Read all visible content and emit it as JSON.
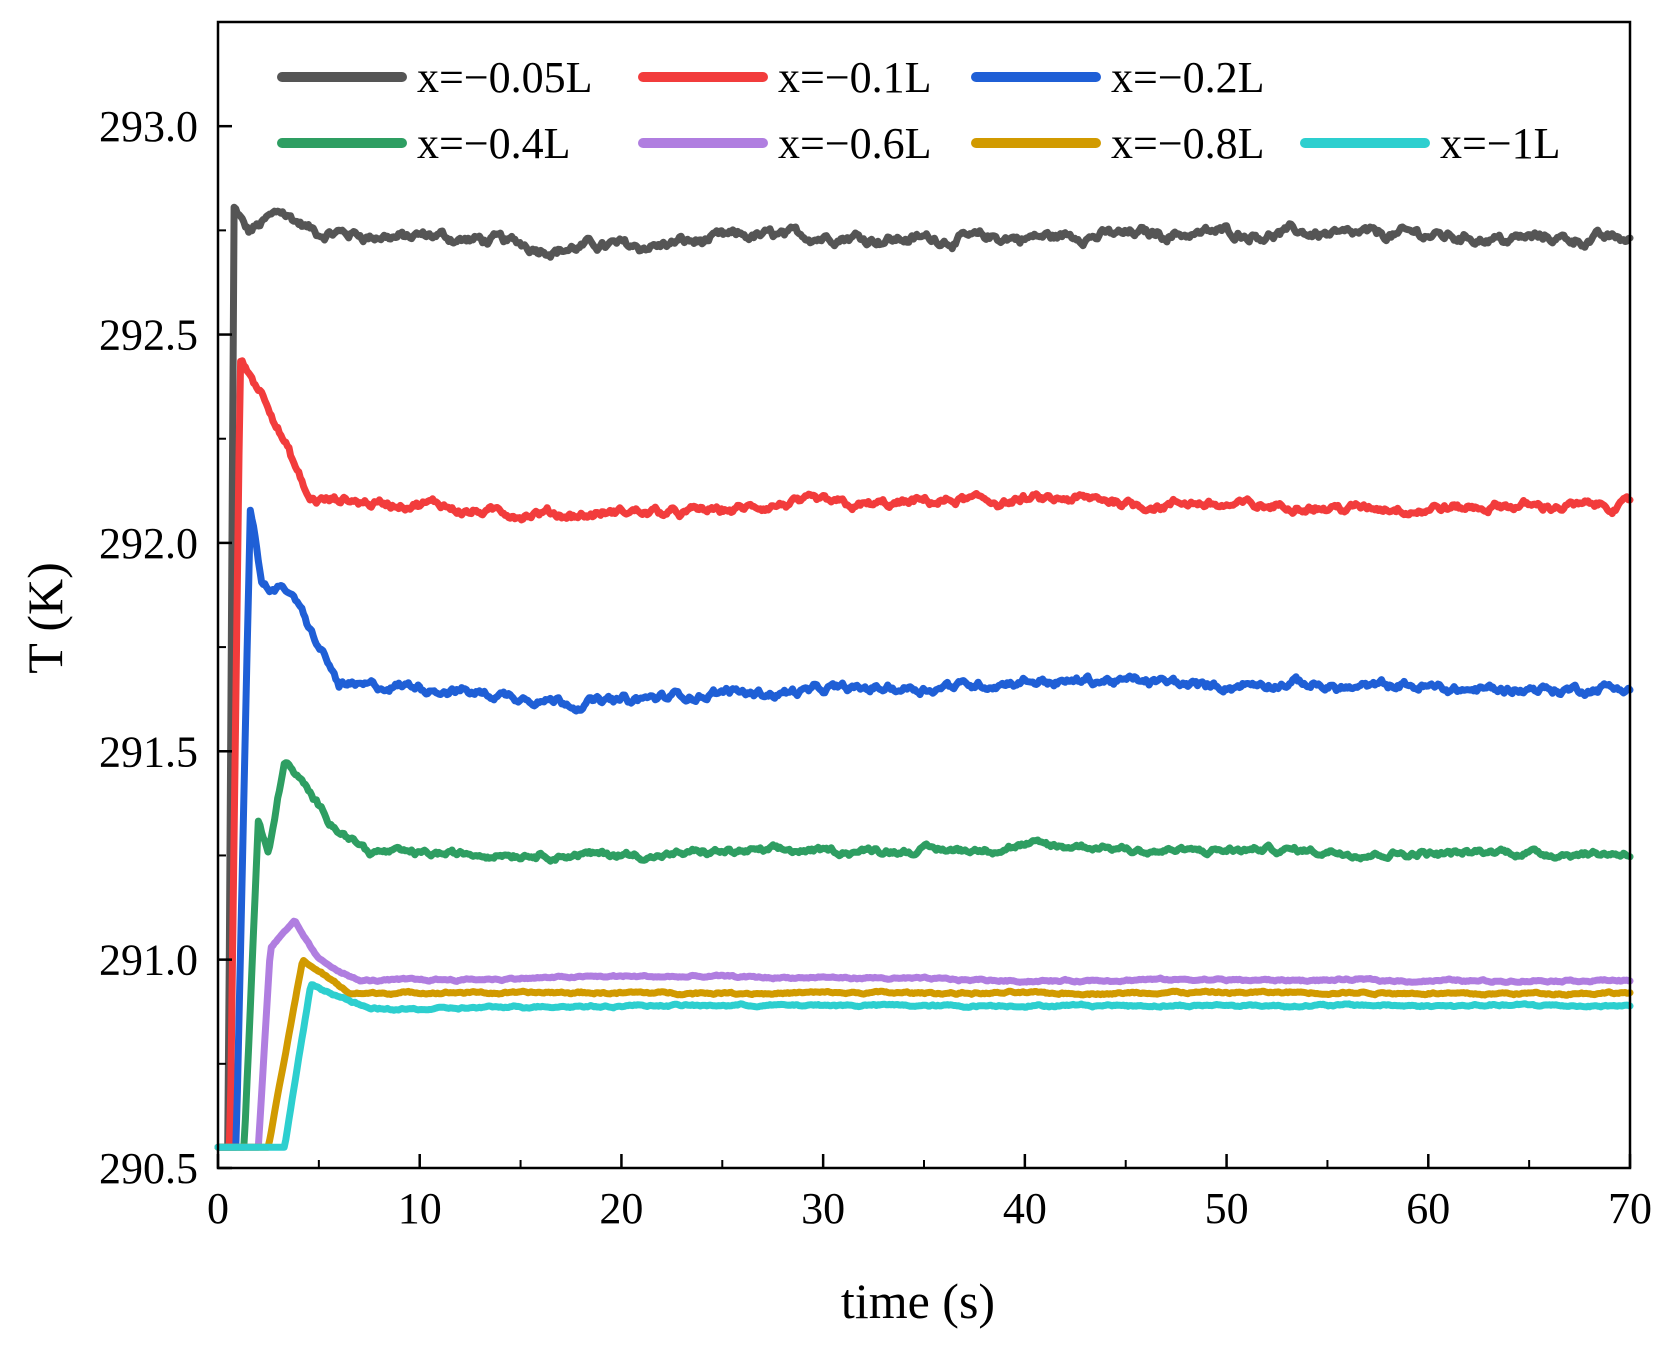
{
  "chart_data": {
    "type": "line",
    "title": "",
    "xlabel": "time (s)",
    "ylabel": "T (K)",
    "xlim": [
      0,
      70
    ],
    "ylim": [
      290.5,
      293.25
    ],
    "xticks": [
      0,
      10,
      20,
      30,
      40,
      50,
      60,
      70
    ],
    "xtick_labels": [
      "0",
      "10",
      "20",
      "30",
      "40",
      "50",
      "60",
      "70"
    ],
    "yticks": [
      290.5,
      291.0,
      291.5,
      292.0,
      292.5,
      293.0
    ],
    "ytick_labels": [
      "290.5",
      "291.0",
      "291.5",
      "292.0",
      "292.5",
      "293.0"
    ],
    "grid": false,
    "legend_position": "top",
    "series": [
      {
        "name": "x=−0.05L",
        "color": "#555555",
        "start": 0.5,
        "peak_time": 0.8,
        "peak": 292.8,
        "steady": 292.74,
        "noise": 0.03,
        "points": [
          [
            0,
            290.55
          ],
          [
            0.5,
            290.55
          ],
          [
            0.8,
            292.8
          ],
          [
            1.5,
            292.74
          ],
          [
            3.2,
            292.8
          ],
          [
            5,
            292.74
          ],
          [
            10,
            292.73
          ],
          [
            17,
            292.71
          ],
          [
            30,
            292.74
          ],
          [
            40,
            292.73
          ],
          [
            50,
            292.75
          ],
          [
            60,
            292.74
          ],
          [
            70,
            292.73
          ]
        ]
      },
      {
        "name": "x=−0.1L",
        "color": "#f23c3c",
        "start": 0.6,
        "peak_time": 1.1,
        "peak": 292.44,
        "steady": 292.09,
        "noise": 0.025,
        "points": [
          [
            0,
            290.55
          ],
          [
            0.6,
            290.55
          ],
          [
            1.1,
            292.44
          ],
          [
            2.5,
            292.34
          ],
          [
            4.5,
            292.1
          ],
          [
            10,
            292.09
          ],
          [
            17,
            292.06
          ],
          [
            30,
            292.09
          ],
          [
            40,
            292.1
          ],
          [
            50,
            292.09
          ],
          [
            60,
            292.08
          ],
          [
            70,
            292.09
          ]
        ]
      },
      {
        "name": "x=−0.2L",
        "color": "#1f5fd6",
        "start": 0.9,
        "peak_time": 1.6,
        "peak": 292.09,
        "steady": 291.65,
        "noise": 0.025,
        "points": [
          [
            0,
            290.55
          ],
          [
            0.9,
            290.55
          ],
          [
            1.6,
            292.09
          ],
          [
            2.2,
            291.9
          ],
          [
            3.6,
            291.88
          ],
          [
            6,
            291.66
          ],
          [
            10,
            291.65
          ],
          [
            18,
            291.62
          ],
          [
            30,
            291.65
          ],
          [
            40,
            291.67
          ],
          [
            50,
            291.66
          ],
          [
            60,
            291.65
          ],
          [
            70,
            291.65
          ]
        ]
      },
      {
        "name": "x=−0.4L",
        "color": "#2e9e62",
        "start": 1.3,
        "peak_time": 3.3,
        "peak": 291.48,
        "steady": 291.26,
        "noise": 0.018,
        "points": [
          [
            0,
            290.55
          ],
          [
            1.3,
            290.55
          ],
          [
            2.0,
            291.33
          ],
          [
            2.5,
            291.25
          ],
          [
            3.3,
            291.48
          ],
          [
            4.5,
            291.4
          ],
          [
            5.5,
            291.33
          ],
          [
            7.5,
            291.26
          ],
          [
            20,
            291.25
          ],
          [
            30,
            291.26
          ],
          [
            40,
            291.27
          ],
          [
            50,
            291.26
          ],
          [
            60,
            291.26
          ],
          [
            70,
            291.26
          ]
        ]
      },
      {
        "name": "x=−0.6L",
        "color": "#b07ee0",
        "start": 2.0,
        "peak_time": 3.8,
        "peak": 291.09,
        "steady": 290.95,
        "noise": 0.006,
        "points": [
          [
            0,
            290.55
          ],
          [
            2.0,
            290.55
          ],
          [
            2.6,
            291.03
          ],
          [
            3.8,
            291.09
          ],
          [
            5,
            291.0
          ],
          [
            7,
            290.95
          ],
          [
            20,
            290.96
          ],
          [
            40,
            290.95
          ],
          [
            60,
            290.95
          ],
          [
            70,
            290.95
          ]
        ]
      },
      {
        "name": "x=−0.8L",
        "color": "#d19a00",
        "start": 2.5,
        "peak_time": 4.2,
        "peak": 291.0,
        "steady": 290.92,
        "noise": 0.006,
        "points": [
          [
            0,
            290.55
          ],
          [
            2.5,
            290.55
          ],
          [
            4.2,
            291.0
          ],
          [
            6.5,
            290.92
          ],
          [
            20,
            290.92
          ],
          [
            40,
            290.92
          ],
          [
            60,
            290.92
          ],
          [
            70,
            290.92
          ]
        ]
      },
      {
        "name": "x=−1L",
        "color": "#2dcfcf",
        "start": 3.3,
        "peak_time": 4.6,
        "peak": 290.94,
        "steady": 290.89,
        "noise": 0.006,
        "points": [
          [
            0,
            290.55
          ],
          [
            3.3,
            290.55
          ],
          [
            4.6,
            290.94
          ],
          [
            7.5,
            290.88
          ],
          [
            20,
            290.89
          ],
          [
            40,
            290.89
          ],
          [
            60,
            290.89
          ],
          [
            70,
            290.89
          ]
        ]
      }
    ]
  }
}
